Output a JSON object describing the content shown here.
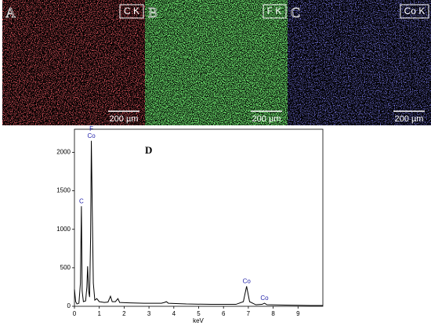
{
  "panels": [
    {
      "label": "A",
      "element": "C K",
      "scale": "200 µm"
    },
    {
      "label": "B",
      "element": "F K",
      "scale": "200 µm"
    },
    {
      "label": "C",
      "element": "Co K",
      "scale": "200 µm"
    }
  ],
  "chart_data": {
    "type": "line",
    "label": "D",
    "x_label": "keV",
    "x": [
      0,
      0.05,
      0.1,
      0.18,
      0.24,
      0.28,
      0.31,
      0.36,
      0.45,
      0.5,
      0.53,
      0.57,
      0.61,
      0.65,
      0.68,
      0.72,
      0.76,
      0.82,
      0.9,
      1.0,
      1.2,
      1.35,
      1.45,
      1.52,
      1.65,
      1.75,
      1.82,
      2.2,
      2.8,
      3.5,
      3.62,
      3.7,
      3.78,
      4.5,
      5.5,
      6.5,
      6.8,
      6.93,
      7.05,
      7.3,
      7.55,
      7.65,
      7.75,
      8.5,
      9.5,
      10
    ],
    "series": [
      {
        "name": "spectrum",
        "color": "#000000",
        "values": [
          220,
          60,
          30,
          40,
          300,
          1300,
          200,
          60,
          70,
          250,
          520,
          200,
          120,
          900,
          2150,
          1200,
          300,
          80,
          100,
          60,
          50,
          55,
          130,
          60,
          60,
          100,
          50,
          45,
          40,
          40,
          50,
          60,
          40,
          30,
          25,
          25,
          60,
          260,
          60,
          20,
          25,
          40,
          20,
          15,
          10,
          10
        ]
      }
    ],
    "annotations": [
      {
        "text": "C",
        "x": 0.28
      },
      {
        "text": "F",
        "x": 0.68
      },
      {
        "text": "Co",
        "x": 0.68
      },
      {
        "text": "Co",
        "x": 6.93
      },
      {
        "text": "Co",
        "x": 7.65
      }
    ],
    "xlim": [
      0,
      10
    ],
    "ylim": [
      0,
      2300
    ],
    "xticks": [
      0,
      1,
      2,
      3,
      4,
      5,
      6,
      7,
      8,
      9
    ],
    "yticks": [
      0,
      500,
      1000,
      1500,
      2000
    ]
  }
}
